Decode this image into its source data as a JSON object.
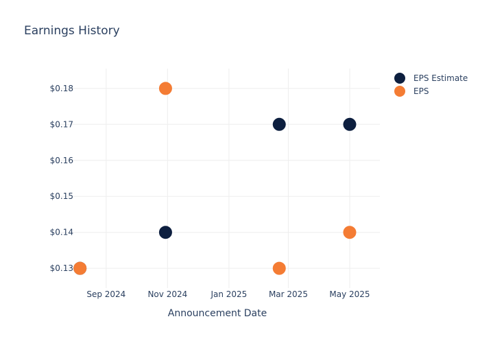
{
  "chart_data": {
    "type": "scatter",
    "title": "Earnings History",
    "xlabel": "Announcement Date",
    "ylabel": "",
    "x_ticks": [
      "Sep 2024",
      "Nov 2024",
      "Jan 2025",
      "Mar 2025",
      "May 2025"
    ],
    "y_ticks": [
      "$0.13",
      "$0.14",
      "$0.15",
      "$0.16",
      "$0.17",
      "$0.18"
    ],
    "x_range": [
      "2024-07-12",
      "2025-05-31"
    ],
    "ylim": [
      0.1245,
      0.1855
    ],
    "grid": true,
    "legend_position": "top-right",
    "series": [
      {
        "name": "EPS Estimate",
        "color": "#0d1f3f",
        "points": [
          {
            "x": "2024-08-06",
            "y": 0.13
          },
          {
            "x": "2024-10-30",
            "y": 0.14
          },
          {
            "x": "2025-02-20",
            "y": 0.17
          },
          {
            "x": "2025-05-01",
            "y": 0.17
          }
        ]
      },
      {
        "name": "EPS",
        "color": "#f47c34",
        "points": [
          {
            "x": "2024-08-06",
            "y": 0.13
          },
          {
            "x": "2024-10-30",
            "y": 0.18
          },
          {
            "x": "2025-02-20",
            "y": 0.13
          },
          {
            "x": "2025-05-01",
            "y": 0.14
          }
        ]
      }
    ]
  }
}
